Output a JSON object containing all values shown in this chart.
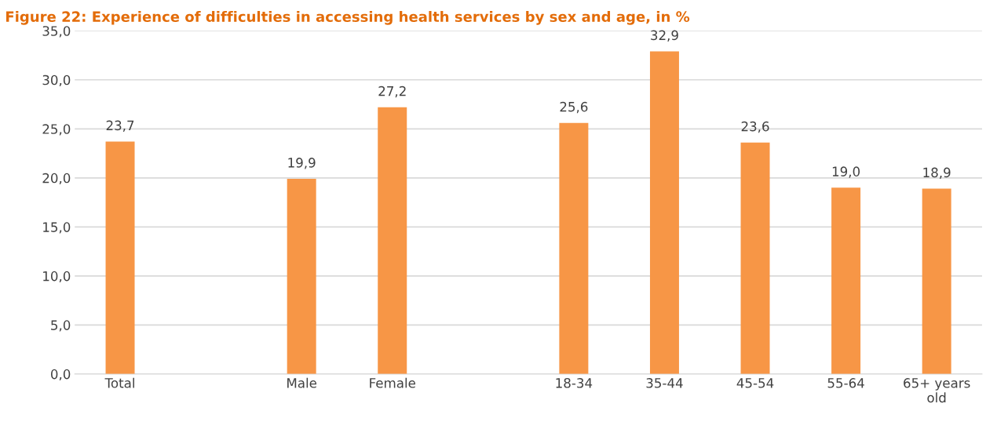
{
  "chart_data": {
    "type": "bar",
    "title": "Figure 22: Experience of difficulties in accessing health services by sex and age, in %",
    "categories": [
      "Total",
      null,
      "Male",
      "Female",
      null,
      "18-34",
      "35-44",
      "45-54",
      "55-64",
      "65+ years\nold"
    ],
    "values": [
      23.7,
      null,
      19.9,
      27.2,
      null,
      25.6,
      32.9,
      23.6,
      19.0,
      18.9
    ],
    "value_labels": [
      "23,7",
      null,
      "19,9",
      "27,2",
      null,
      "25,6",
      "32,9",
      "23,6",
      "19,0",
      "18,9"
    ],
    "color": "#f79646",
    "ylim": [
      0,
      35
    ],
    "yticks": [
      {
        "value": 0,
        "label": "0,0"
      },
      {
        "value": 5,
        "label": "5,0"
      },
      {
        "value": 10,
        "label": "10,0"
      },
      {
        "value": 15,
        "label": "15,0"
      },
      {
        "value": 20,
        "label": "20,0"
      },
      {
        "value": 25,
        "label": "25,0"
      },
      {
        "value": 30,
        "label": "30,0"
      },
      {
        "value": 35,
        "label": "35,0"
      }
    ],
    "grid": "y",
    "legend": false
  }
}
